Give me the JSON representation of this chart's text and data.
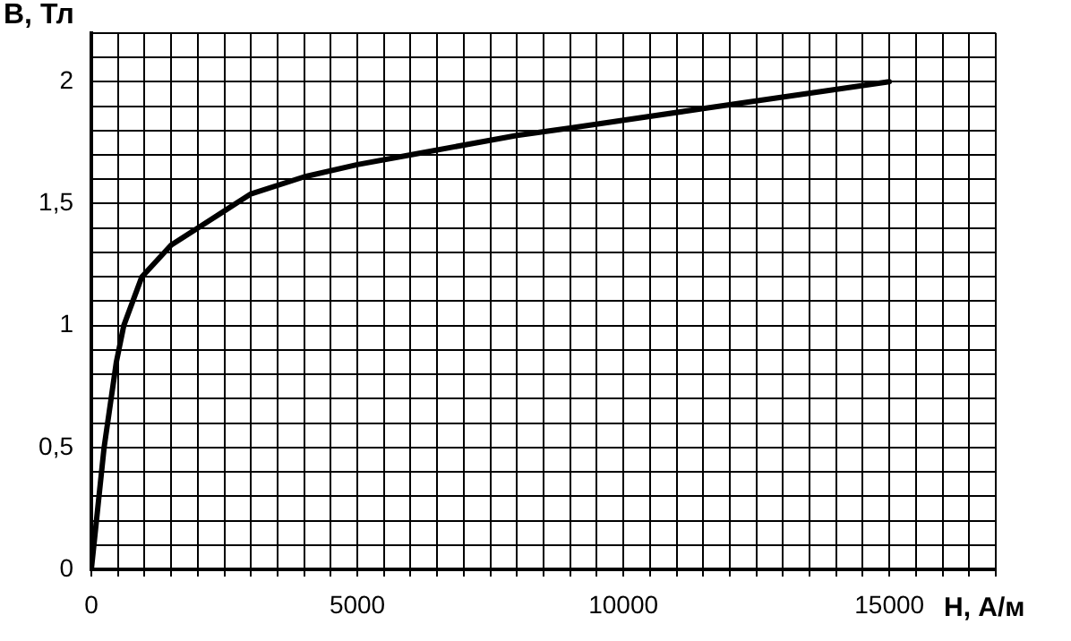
{
  "chart_data": {
    "type": "line",
    "xlabel": "H, А/м",
    "ylabel": "B, Тл",
    "x": [
      0,
      240,
      470,
      610,
      950,
      1500,
      2000,
      3000,
      4000,
      5000,
      6000,
      8000,
      9000,
      11500,
      15000
    ],
    "series": [
      {
        "color": "#000000",
        "values": [
          0,
          0.5,
          0.85,
          1.0,
          1.2,
          1.33,
          1.4,
          1.54,
          1.61,
          1.66,
          1.7,
          1.78,
          1.81,
          1.89,
          2.0
        ]
      }
    ],
    "xlim": [
      0,
      17000
    ],
    "ylim": [
      0,
      2.2
    ],
    "xticks": [
      0,
      {
        "value": 500,
        "label": null
      },
      {
        "value": 1000,
        "label": null
      },
      {
        "value": 1500,
        "label": null
      },
      {
        "value": 2000,
        "label": null
      },
      {
        "value": 2500,
        "label": null
      },
      {
        "value": 3000,
        "label": null
      },
      {
        "value": 3500,
        "label": null
      },
      {
        "value": 4000,
        "label": null
      },
      {
        "value": 4500,
        "label": null
      },
      5000,
      {
        "value": 5500,
        "label": null
      },
      {
        "value": 6000,
        "label": null
      },
      {
        "value": 6500,
        "label": null
      },
      {
        "value": 7000,
        "label": null
      },
      {
        "value": 7500,
        "label": null
      },
      {
        "value": 8000,
        "label": null
      },
      {
        "value": 8500,
        "label": null
      },
      {
        "value": 9000,
        "label": null
      },
      {
        "value": 9500,
        "label": null
      },
      10000,
      {
        "value": 10500,
        "label": null
      },
      {
        "value": 11000,
        "label": null
      },
      {
        "value": 11500,
        "label": null
      },
      {
        "value": 12000,
        "label": null
      },
      {
        "value": 12500,
        "label": null
      },
      {
        "value": 13000,
        "label": null
      },
      {
        "value": 13500,
        "label": null
      },
      {
        "value": 14000,
        "label": null
      },
      {
        "value": 14500,
        "label": null
      },
      15000,
      {
        "value": 15500,
        "label": null
      },
      {
        "value": 16000,
        "label": null
      },
      {
        "value": 16500,
        "label": null
      },
      {
        "value": 17000,
        "label": null
      }
    ],
    "yticks": [
      0,
      {
        "value": 0.1,
        "label": null
      },
      {
        "value": 0.2,
        "label": null
      },
      {
        "value": 0.3,
        "label": null
      },
      {
        "value": 0.4,
        "label": null
      },
      {
        "value": 0.5,
        "label": "0,5"
      },
      {
        "value": 0.6,
        "label": null
      },
      {
        "value": 0.7,
        "label": null
      },
      {
        "value": 0.8,
        "label": null
      },
      {
        "value": 0.9,
        "label": null
      },
      1,
      {
        "value": 1.1,
        "label": null
      },
      {
        "value": 1.2,
        "label": null
      },
      {
        "value": 1.3,
        "label": null
      },
      {
        "value": 1.4,
        "label": null
      },
      {
        "value": 1.5,
        "label": "1,5"
      },
      {
        "value": 1.6,
        "label": null
      },
      {
        "value": 1.7,
        "label": null
      },
      {
        "value": 1.8,
        "label": null
      },
      {
        "value": 1.9,
        "label": null
      },
      2,
      {
        "value": 2.1,
        "label": null
      },
      {
        "value": 2.2,
        "label": null
      }
    ],
    "grid": true
  }
}
